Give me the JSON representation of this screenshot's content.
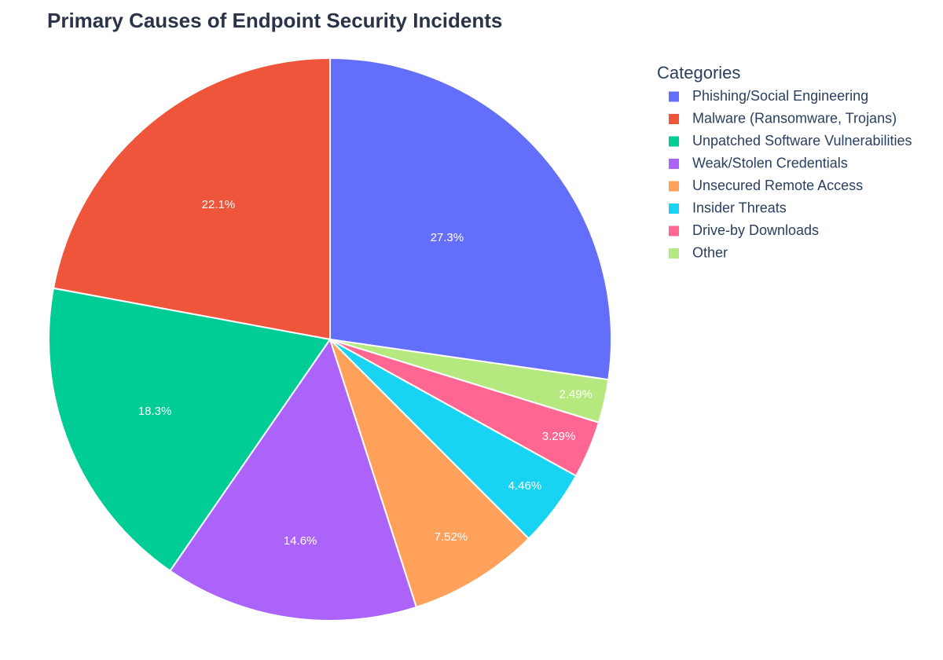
{
  "chart_data": {
    "type": "pie",
    "title": "Primary Causes of Endpoint Security Incidents",
    "legend_title": "Categories",
    "categories": [
      "Phishing/Social Engineering",
      "Malware (Ransomware, Trojans)",
      "Unpatched Software Vulnerabilities",
      "Weak/Stolen Credentials",
      "Unsecured Remote Access",
      "Insider Threats",
      "Drive-by Downloads",
      "Other"
    ],
    "values": [
      27.3,
      22.1,
      18.3,
      14.6,
      7.52,
      4.46,
      3.29,
      2.49
    ],
    "value_labels": [
      "27.3%",
      "22.1%",
      "18.3%",
      "14.6%",
      "7.52%",
      "4.46%",
      "3.29%",
      "2.49%"
    ],
    "colors": [
      "#636efa",
      "#ef553b",
      "#00cc96",
      "#ab63fa",
      "#ffa15a",
      "#19d3f3",
      "#ff6692",
      "#b6e880"
    ],
    "legend_position": "top-right"
  }
}
